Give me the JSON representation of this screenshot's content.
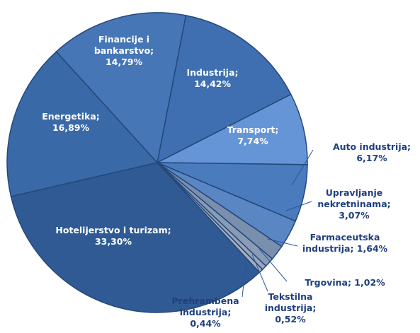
{
  "chart_data": {
    "type": "pie",
    "categories": [
      "Industrija",
      "Transport",
      "Auto industrija",
      "Upravljanje nekretninama",
      "Farmaceutska industrija",
      "Trgovina",
      "Tekstilna industrija",
      "Prehrambena industrija",
      "Hotelijerstvo i turizam",
      "Energetika",
      "Financije i bankarstvo"
    ],
    "values": [
      14.42,
      7.74,
      6.17,
      3.07,
      1.64,
      1.02,
      0.52,
      0.44,
      33.3,
      16.89,
      14.79
    ],
    "value_labels": [
      "14,42%",
      "7,74%",
      "6,17%",
      "3,07%",
      "1,64%",
      "1,02%",
      "0,52%",
      "0,44%",
      "33,30%",
      "16,89%",
      "14,79%"
    ],
    "separator": ";",
    "colors": [
      "#3f6fb0",
      "#6595d6",
      "#4a7bbd",
      "#5a86c4",
      "#7a8fae",
      "#8a9bb5",
      "#9aa6b8",
      "#a7b0bd",
      "#2f5a93",
      "#3a69a8",
      "#4676b6"
    ]
  }
}
